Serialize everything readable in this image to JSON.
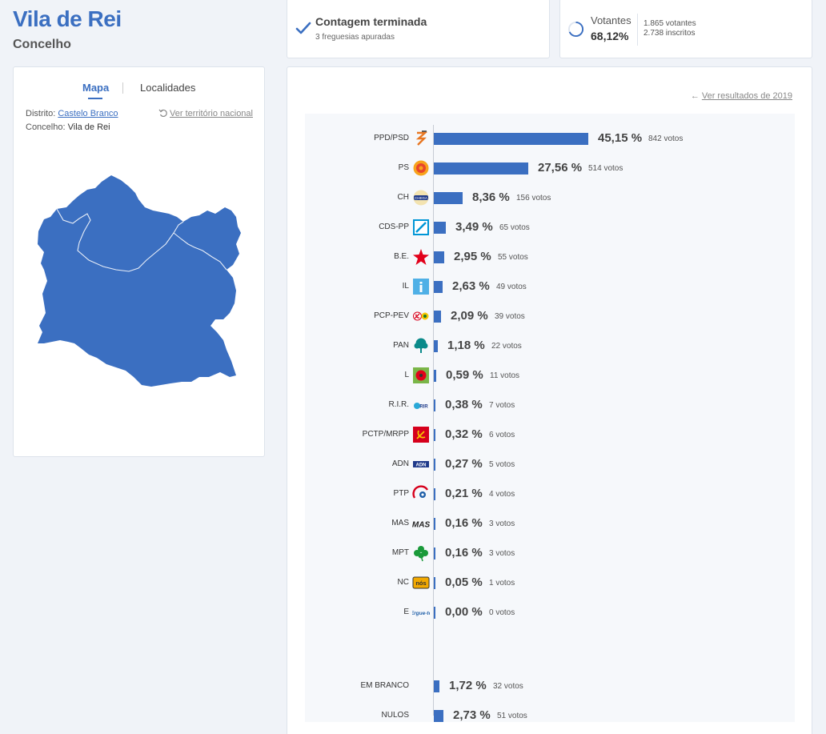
{
  "header": {
    "title": "Vila de Rei",
    "subtitle": "Concelho"
  },
  "status": {
    "title": "Contagem terminada",
    "subtitle": "3 freguesias apuradas"
  },
  "voters": {
    "label": "Votantes",
    "percent": "68,12%",
    "participation": 0.6812,
    "votantes": "1.865 votantes",
    "inscritos": "2.738 inscritos"
  },
  "map_panel": {
    "tabs": [
      "Mapa",
      "Localidades"
    ],
    "district_label": "Distrito:",
    "district_value": "Castelo Branco",
    "municipality_label": "Concelho:",
    "municipality_value": "Vila de Rei",
    "national_link": "Ver território nacional"
  },
  "results": {
    "previous_link": "Ver resultados de 2019",
    "max_percent": 45.15,
    "parties": [
      {
        "name": "PPD/PSD",
        "percent": 45.15,
        "percent_label": "45,15 %",
        "votes_label": "842 votos",
        "icon": "psd-logo",
        "color": "#e87722"
      },
      {
        "name": "PS",
        "percent": 27.56,
        "percent_label": "27,56 %",
        "votes_label": "514 votos",
        "icon": "ps-logo",
        "color": "#e8452c"
      },
      {
        "name": "CH",
        "percent": 8.36,
        "percent_label": "8,36 %",
        "votes_label": "156 votos",
        "icon": "chega-logo",
        "color": "#1f3a8a"
      },
      {
        "name": "CDS-PP",
        "percent": 3.49,
        "percent_label": "3,49 %",
        "votes_label": "65 votos",
        "icon": "cds-logo",
        "color": "#0096d6"
      },
      {
        "name": "B.E.",
        "percent": 2.95,
        "percent_label": "2,95 %",
        "votes_label": "55 votos",
        "icon": "be-star-logo",
        "color": "#e2001a"
      },
      {
        "name": "IL",
        "percent": 2.63,
        "percent_label": "2,63 %",
        "votes_label": "49 votos",
        "icon": "il-logo",
        "color": "#4fb0e6"
      },
      {
        "name": "PCP-PEV",
        "percent": 2.09,
        "percent_label": "2,09 %",
        "votes_label": "39 votos",
        "icon": "pcp-pev-logo",
        "color": "#d6001c"
      },
      {
        "name": "PAN",
        "percent": 1.18,
        "percent_label": "1,18 %",
        "votes_label": "22 votos",
        "icon": "pan-tree-logo",
        "color": "#0a8a8a"
      },
      {
        "name": "L",
        "percent": 0.59,
        "percent_label": "0,59 %",
        "votes_label": "11 votos",
        "icon": "livre-logo",
        "color": "#7ab648"
      },
      {
        "name": "R.I.R.",
        "percent": 0.38,
        "percent_label": "0,38 %",
        "votes_label": "7 votos",
        "icon": "rir-logo",
        "color": "#2aa9d8"
      },
      {
        "name": "PCTP/MRPP",
        "percent": 0.32,
        "percent_label": "0,32 %",
        "votes_label": "6 votos",
        "icon": "pctp-logo",
        "color": "#d6001c"
      },
      {
        "name": "ADN",
        "percent": 0.27,
        "percent_label": "0,27 %",
        "votes_label": "5 votos",
        "icon": "adn-logo",
        "color": "#1f3a8a"
      },
      {
        "name": "PTP",
        "percent": 0.21,
        "percent_label": "0,21 %",
        "votes_label": "4 votos",
        "icon": "ptp-logo",
        "color": "#d6001c"
      },
      {
        "name": "MAS",
        "percent": 0.16,
        "percent_label": "0,16 %",
        "votes_label": "3 votos",
        "icon": "mas-logo",
        "color": "#222222"
      },
      {
        "name": "MPT",
        "percent": 0.16,
        "percent_label": "0,16 %",
        "votes_label": "3 votos",
        "icon": "mpt-clover-logo",
        "color": "#1a9a3a"
      },
      {
        "name": "NC",
        "percent": 0.05,
        "percent_label": "0,05 %",
        "votes_label": "1 votos",
        "icon": "nc-logo",
        "color": "#f2a900"
      },
      {
        "name": "E",
        "percent": 0.0,
        "percent_label": "0,00 %",
        "votes_label": "0 votos",
        "icon": "ergue-te-logo",
        "color": "#1f5fa8"
      }
    ],
    "extras": [
      {
        "name": "EM BRANCO",
        "percent": 1.72,
        "percent_label": "1,72 %",
        "votes_label": "32 votos"
      },
      {
        "name": "NULOS",
        "percent": 2.73,
        "percent_label": "2,73 %",
        "votes_label": "51 votos"
      }
    ]
  },
  "colors": {
    "accent": "#3b6fc1",
    "bar": "#3b6fc1",
    "map_fill": "#3b6fc1",
    "background": "#f0f3f8"
  }
}
